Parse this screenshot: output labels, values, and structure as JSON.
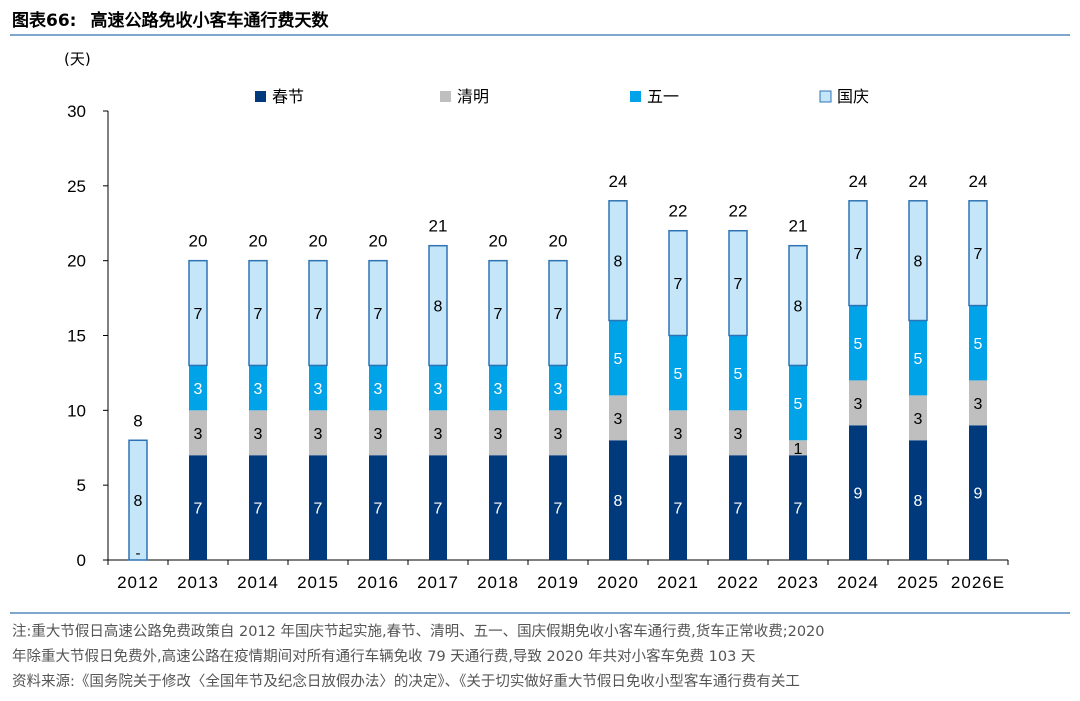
{
  "figure": {
    "number": "图表66:",
    "title": "高速公路免收小客车通行费天数"
  },
  "chart_data": {
    "type": "bar",
    "stacked": true,
    "unit_label": "(天)",
    "categories": [
      "2012",
      "2013",
      "2014",
      "2015",
      "2016",
      "2017",
      "2018",
      "2019",
      "2020",
      "2021",
      "2022",
      "2023",
      "2024",
      "2025",
      "2026E"
    ],
    "ylim": [
      0,
      30
    ],
    "yticks": [
      0,
      5,
      10,
      15,
      20,
      25,
      30
    ],
    "grid": false,
    "legend_position": "top",
    "series": [
      {
        "name": "春节",
        "color": "#003a7d",
        "values": [
          0,
          7,
          7,
          7,
          7,
          7,
          7,
          7,
          8,
          7,
          7,
          7,
          9,
          8,
          9
        ]
      },
      {
        "name": "清明",
        "color": "#bfbfbf",
        "values": [
          0,
          3,
          3,
          3,
          3,
          3,
          3,
          3,
          3,
          3,
          3,
          1,
          3,
          3,
          3
        ]
      },
      {
        "name": "五一",
        "color": "#00a2e8",
        "values": [
          0,
          3,
          3,
          3,
          3,
          3,
          3,
          3,
          5,
          5,
          5,
          5,
          5,
          5,
          5
        ]
      },
      {
        "name": "国庆",
        "color": "#c5e5f8",
        "edge": "#2e74b5",
        "values": [
          8,
          7,
          7,
          7,
          7,
          8,
          7,
          7,
          8,
          7,
          7,
          8,
          7,
          8,
          7
        ]
      }
    ],
    "totals": [
      8,
      20,
      20,
      20,
      20,
      21,
      20,
      20,
      24,
      22,
      22,
      21,
      24,
      24,
      24
    ],
    "zero_marker": "-"
  },
  "notes": {
    "line1": "注:重大节假日高速公路免费政策自 2012 年国庆节起实施,春节、清明、五一、国庆假期免收小客车通行费,货车正常收费;2020",
    "line2": "年除重大节假日免费外,高速公路在疫情期间对所有通行车辆免收 79 天通行费,导致 2020 年共对小客车免费 103 天",
    "line3": "资料来源:《国务院关于修改〈全国年节及纪念日放假办法〉的决定》、《关于切实做好重大节假日免收小型客车通行费有关工"
  }
}
